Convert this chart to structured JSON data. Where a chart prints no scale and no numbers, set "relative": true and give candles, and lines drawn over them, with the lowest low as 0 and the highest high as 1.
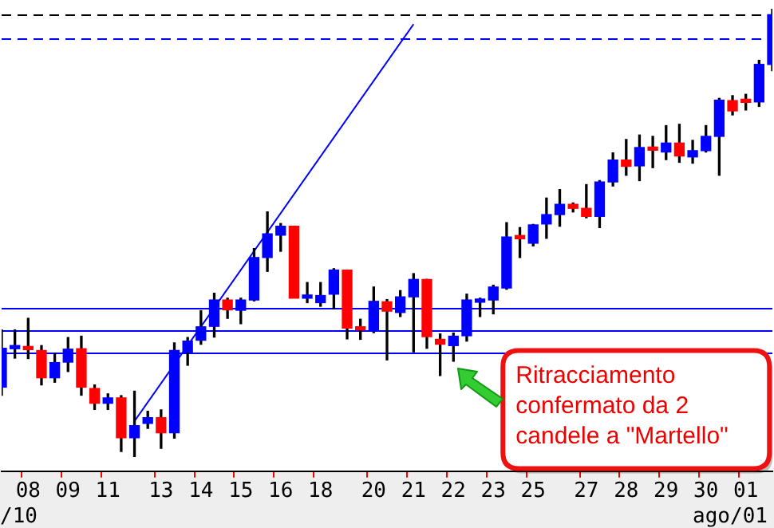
{
  "chart_data": {
    "type": "candlestick",
    "relative": true,
    "categories": [
      null,
      null,
      "08",
      null,
      null,
      "09",
      null,
      null,
      "11",
      null,
      null,
      null,
      "13",
      null,
      null,
      "14",
      null,
      null,
      "15",
      null,
      null,
      "16",
      null,
      null,
      "18",
      null,
      null,
      null,
      "20",
      null,
      null,
      "21",
      null,
      null,
      "22",
      null,
      null,
      "23",
      null,
      null,
      "25",
      null,
      null,
      null,
      "27",
      null,
      null,
      "28",
      null,
      null,
      "29",
      null,
      null,
      "30",
      null,
      null,
      "01",
      null,
      null
    ],
    "ohlc": [
      [
        0.155,
        0.283,
        0.137,
        0.242
      ],
      [
        0.241,
        0.283,
        0.22,
        0.245
      ],
      [
        0.246,
        0.309,
        0.219,
        0.239
      ],
      [
        0.237,
        0.248,
        0.16,
        0.176
      ],
      [
        0.176,
        0.231,
        0.166,
        0.21
      ],
      [
        0.211,
        0.266,
        0.19,
        0.24
      ],
      [
        0.241,
        0.269,
        0.137,
        0.155
      ],
      [
        0.152,
        0.16,
        0.105,
        0.119
      ],
      [
        0.119,
        0.14,
        0.105,
        0.131
      ],
      [
        0.131,
        0.136,
        0.011,
        0.042
      ],
      [
        0.042,
        0.146,
        0.0,
        0.069
      ],
      [
        0.074,
        0.101,
        0.063,
        0.087
      ],
      [
        0.087,
        0.104,
        0.018,
        0.053
      ],
      [
        0.053,
        0.254,
        0.041,
        0.237
      ],
      [
        0.233,
        0.266,
        0.204,
        0.258
      ],
      [
        0.26,
        0.326,
        0.251,
        0.29
      ],
      [
        0.291,
        0.365,
        0.267,
        0.35
      ],
      [
        0.35,
        0.354,
        0.309,
        0.328
      ],
      [
        0.327,
        0.354,
        0.297,
        0.35
      ],
      [
        0.35,
        0.465,
        0.348,
        0.445
      ],
      [
        0.445,
        0.547,
        0.414,
        0.498
      ],
      [
        0.495,
        0.521,
        0.459,
        0.515
      ],
      [
        0.515,
        0.515,
        0.354,
        0.354
      ],
      [
        0.354,
        0.389,
        0.344,
        0.36
      ],
      [
        0.344,
        0.389,
        0.336,
        0.36
      ],
      [
        0.363,
        0.42,
        0.33,
        0.417
      ],
      [
        0.417,
        0.417,
        0.263,
        0.287
      ],
      [
        0.287,
        0.307,
        0.262,
        0.283
      ],
      [
        0.28,
        0.379,
        0.277,
        0.347
      ],
      [
        0.346,
        0.351,
        0.216,
        0.325
      ],
      [
        0.322,
        0.371,
        0.313,
        0.357
      ],
      [
        0.357,
        0.409,
        0.234,
        0.396
      ],
      [
        0.396,
        0.396,
        0.242,
        0.268
      ],
      [
        0.262,
        0.274,
        0.181,
        0.251
      ],
      [
        0.248,
        0.276,
        0.213,
        0.269
      ],
      [
        0.27,
        0.363,
        0.258,
        0.35
      ],
      [
        0.345,
        0.354,
        0.313,
        0.35
      ],
      [
        0.35,
        0.383,
        0.319,
        0.379
      ],
      [
        0.377,
        0.523,
        0.374,
        0.491
      ],
      [
        0.49,
        0.512,
        0.445,
        0.487
      ],
      [
        0.477,
        0.519,
        0.471,
        0.518
      ],
      [
        0.52,
        0.578,
        0.488,
        0.541
      ],
      [
        0.541,
        0.597,
        0.515,
        0.564
      ],
      [
        0.564,
        0.567,
        0.547,
        0.555
      ],
      [
        0.555,
        0.608,
        0.534,
        0.537
      ],
      [
        0.537,
        0.617,
        0.512,
        0.614
      ],
      [
        0.614,
        0.679,
        0.605,
        0.663
      ],
      [
        0.663,
        0.709,
        0.629,
        0.649
      ],
      [
        0.65,
        0.719,
        0.617,
        0.691
      ],
      [
        0.69,
        0.716,
        0.646,
        0.685
      ],
      [
        0.681,
        0.74,
        0.664,
        0.701
      ],
      [
        0.701,
        0.743,
        0.658,
        0.672
      ],
      [
        0.67,
        0.707,
        0.656,
        0.684
      ],
      [
        0.684,
        0.74,
        0.681,
        0.716
      ],
      [
        0.716,
        0.801,
        0.629,
        0.797
      ],
      [
        0.796,
        0.807,
        0.764,
        0.773
      ],
      [
        0.795,
        0.81,
        0.775,
        0.792
      ],
      [
        0.793,
        0.886,
        0.783,
        0.877
      ],
      [
        0.877,
        1.0,
        0.863,
        0.988
      ]
    ],
    "colors": [
      "#0000ff",
      "#0000ff",
      "#ff0000",
      "#ff0000",
      "#0000ff",
      "#0000ff",
      "#ff0000",
      "#ff0000",
      "#0000ff",
      "#ff0000",
      "#0000ff",
      "#0000ff",
      "#ff0000",
      "#0000ff",
      "#0000ff",
      "#0000ff",
      "#0000ff",
      "#ff0000",
      "#0000ff",
      "#0000ff",
      "#0000ff",
      "#0000ff",
      "#ff0000",
      "#0000ff",
      "#0000ff",
      "#0000ff",
      "#ff0000",
      "#ff0000",
      "#0000ff",
      "#ff0000",
      "#0000ff",
      "#0000ff",
      "#ff0000",
      "#ff0000",
      "#0000ff",
      "#0000ff",
      "#0000ff",
      "#0000ff",
      "#0000ff",
      "#ff0000",
      "#0000ff",
      "#0000ff",
      "#0000ff",
      "#ff0000",
      "#ff0000",
      "#0000ff",
      "#0000ff",
      "#ff0000",
      "#0000ff",
      "#ff0000",
      "#0000ff",
      "#ff0000",
      "#0000ff",
      "#0000ff",
      "#0000ff",
      "#ff0000",
      "#ff0000",
      "#0000ff",
      "#0000ff"
    ],
    "series": [
      {
        "type": "line",
        "color": "#0000ff",
        "values": [
          null,
          null,
          null,
          null,
          null,
          null,
          null,
          null,
          null,
          null,
          0.079,
          null,
          null,
          null,
          null,
          null,
          null,
          null,
          null,
          null,
          null,
          null,
          null,
          null,
          null,
          null,
          null,
          null,
          null,
          null,
          null,
          0.967,
          null,
          null,
          null,
          null,
          null,
          null,
          null,
          null,
          null,
          null,
          null,
          null,
          null,
          null,
          null,
          null,
          null,
          null,
          null,
          null,
          null,
          null,
          null,
          null,
          null,
          null,
          null
        ]
      }
    ],
    "ref_lines": [
      {
        "axis": "y",
        "value": 0.333,
        "color": "#0000ff",
        "line_style": "solid"
      },
      {
        "axis": "y",
        "value": 0.283,
        "color": "#0000ff",
        "line_style": "solid"
      },
      {
        "axis": "y",
        "value": 0.234,
        "color": "#0000ff",
        "line_style": "solid"
      },
      {
        "axis": "y",
        "value": 0.989,
        "color": "#000000",
        "line_style": "dashed"
      },
      {
        "axis": "y",
        "value": 0.937,
        "color": "#0000ff",
        "line_style": "dashed"
      }
    ],
    "annotations": [
      "/10",
      "ago/01",
      {
        "text": "Ritracciamento\nconfermato da 2\ncandele a \"Martello\"",
        "x": "22",
        "y": 0.205
      }
    ]
  }
}
